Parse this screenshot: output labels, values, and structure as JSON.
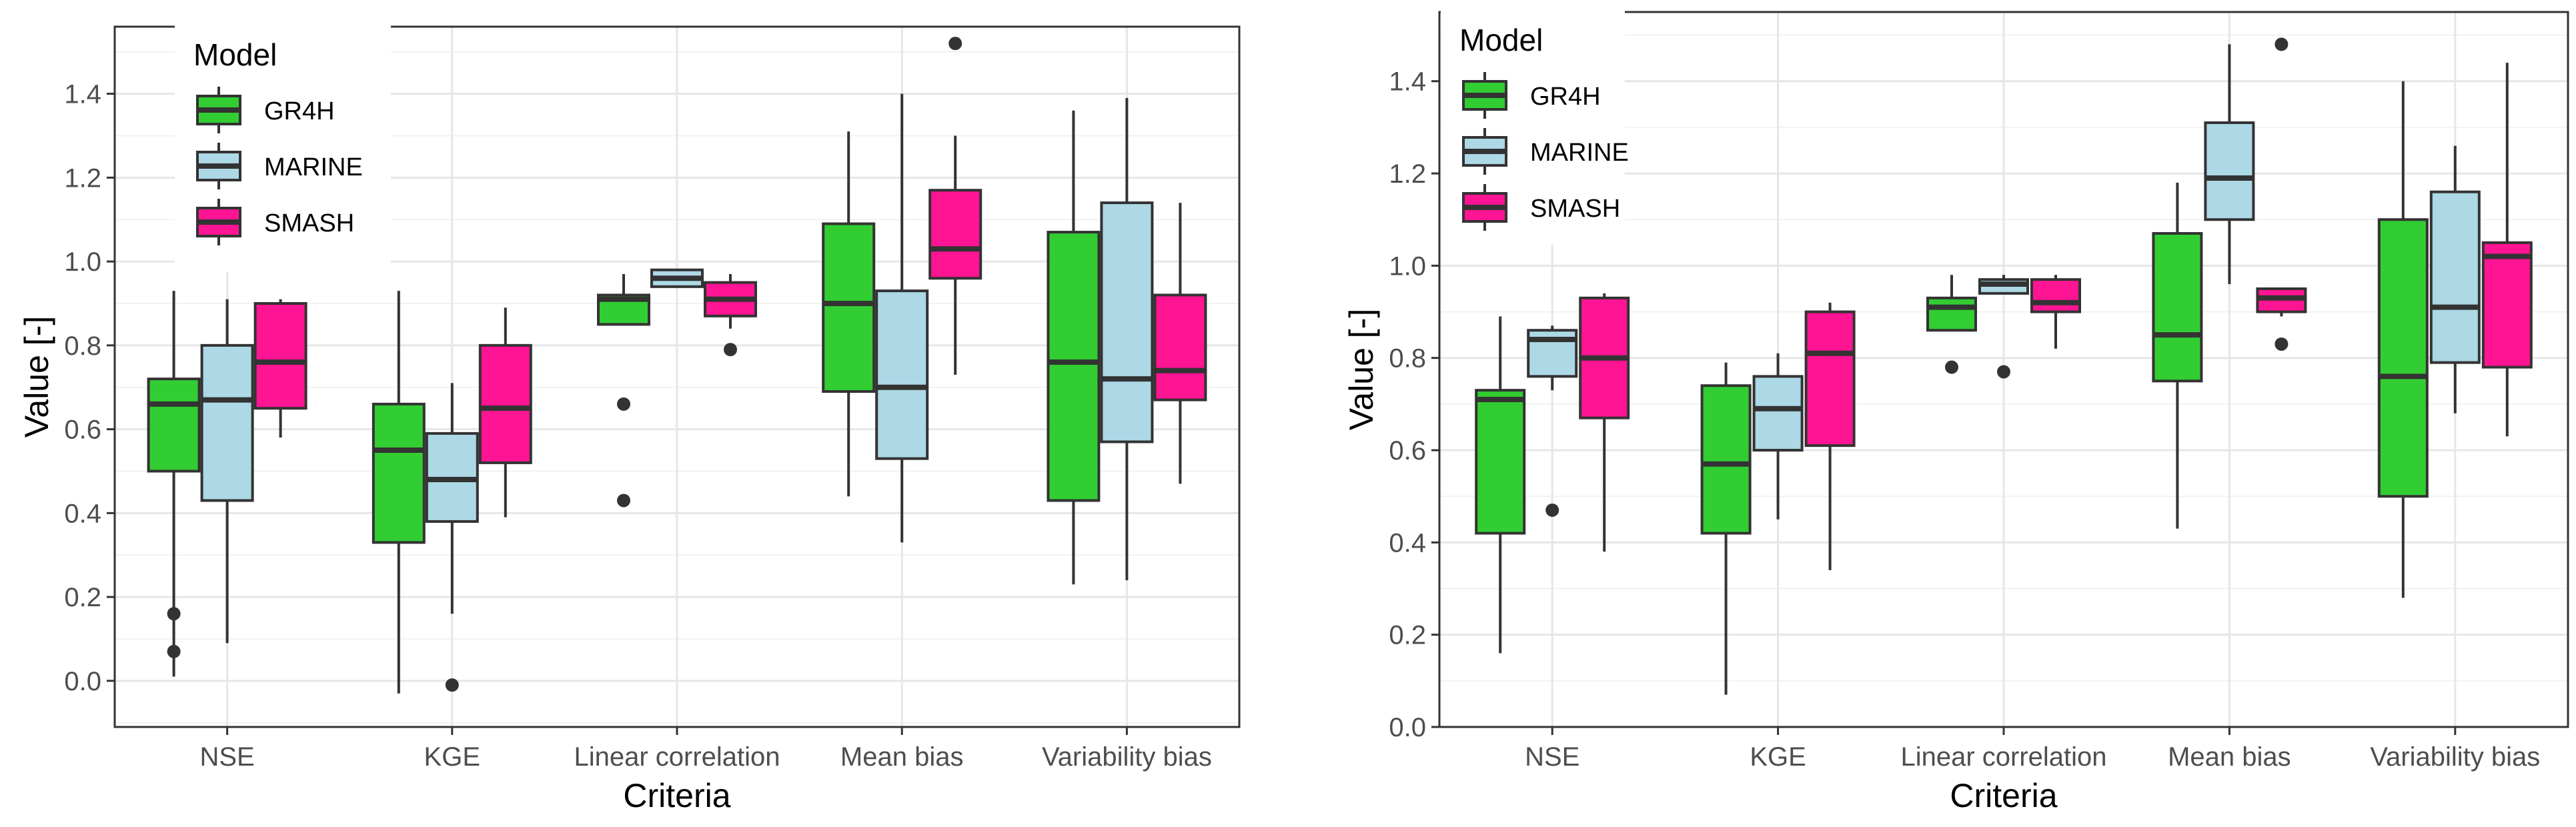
{
  "chart_data": [
    {
      "type": "boxplot",
      "title": "",
      "xlabel": "Criteria",
      "ylabel": "Value [-]",
      "ylim": [
        -0.11,
        1.56
      ],
      "yticks": [
        0.0,
        0.2,
        0.4,
        0.6,
        0.8,
        1.0,
        1.2,
        1.4
      ],
      "ytick_labels": [
        "0.0",
        "0.2",
        "0.4",
        "0.6",
        "0.8",
        "1.0",
        "1.2",
        "1.4"
      ],
      "categories": [
        "NSE",
        "KGE",
        "Linear correlation",
        "Mean bias",
        "Variability bias"
      ],
      "legend": {
        "title": "Model",
        "position": "top-left"
      },
      "series": [
        {
          "name": "GR4H",
          "color": "#32cd32",
          "boxes": [
            {
              "whislo": 0.01,
              "q1": 0.5,
              "med": 0.66,
              "q3": 0.72,
              "whishi": 0.93,
              "fliers": [
                0.16,
                0.07
              ]
            },
            {
              "whislo": -0.03,
              "q1": 0.33,
              "med": 0.55,
              "q3": 0.66,
              "whishi": 0.93,
              "fliers": []
            },
            {
              "whislo": 0.85,
              "q1": 0.85,
              "med": 0.91,
              "q3": 0.92,
              "whishi": 0.97,
              "fliers": [
                0.66,
                0.43
              ]
            },
            {
              "whislo": 0.44,
              "q1": 0.69,
              "med": 0.9,
              "q3": 1.09,
              "whishi": 1.31,
              "fliers": []
            },
            {
              "whislo": 0.23,
              "q1": 0.43,
              "med": 0.76,
              "q3": 1.07,
              "whishi": 1.36,
              "fliers": []
            }
          ]
        },
        {
          "name": "MARINE",
          "color": "#add8e6",
          "boxes": [
            {
              "whislo": 0.09,
              "q1": 0.43,
              "med": 0.67,
              "q3": 0.8,
              "whishi": 0.91,
              "fliers": []
            },
            {
              "whislo": 0.16,
              "q1": 0.38,
              "med": 0.48,
              "q3": 0.59,
              "whishi": 0.71,
              "fliers": [
                -0.01
              ]
            },
            {
              "whislo": 0.94,
              "q1": 0.94,
              "med": 0.96,
              "q3": 0.98,
              "whishi": 0.98,
              "fliers": []
            },
            {
              "whislo": 0.33,
              "q1": 0.53,
              "med": 0.7,
              "q3": 0.93,
              "whishi": 1.4,
              "fliers": []
            },
            {
              "whislo": 0.24,
              "q1": 0.57,
              "med": 0.72,
              "q3": 1.14,
              "whishi": 1.39,
              "fliers": []
            }
          ]
        },
        {
          "name": "SMASH",
          "color": "#ff1493",
          "boxes": [
            {
              "whislo": 0.58,
              "q1": 0.65,
              "med": 0.76,
              "q3": 0.9,
              "whishi": 0.91,
              "fliers": []
            },
            {
              "whislo": 0.39,
              "q1": 0.52,
              "med": 0.65,
              "q3": 0.8,
              "whishi": 0.89,
              "fliers": []
            },
            {
              "whislo": 0.84,
              "q1": 0.87,
              "med": 0.91,
              "q3": 0.95,
              "whishi": 0.97,
              "fliers": [
                0.79
              ]
            },
            {
              "whislo": 0.73,
              "q1": 0.96,
              "med": 1.03,
              "q3": 1.17,
              "whishi": 1.3,
              "fliers": [
                1.52
              ]
            },
            {
              "whislo": 0.47,
              "q1": 0.67,
              "med": 0.74,
              "q3": 0.92,
              "whishi": 1.14,
              "fliers": []
            }
          ]
        }
      ]
    },
    {
      "type": "boxplot",
      "title": "",
      "xlabel": "Criteria",
      "ylabel": "Value [-]",
      "ylim": [
        0.0,
        1.55
      ],
      "yticks": [
        0.0,
        0.2,
        0.4,
        0.6,
        0.8,
        1.0,
        1.2,
        1.4
      ],
      "ytick_labels": [
        "0.0",
        "0.2",
        "0.4",
        "0.6",
        "0.8",
        "1.0",
        "1.2",
        "1.4"
      ],
      "categories": [
        "NSE",
        "KGE",
        "Linear correlation",
        "Mean bias",
        "Variability bias"
      ],
      "legend": {
        "title": "Model",
        "position": "top-left"
      },
      "series": [
        {
          "name": "GR4H",
          "color": "#32cd32",
          "boxes": [
            {
              "whislo": 0.16,
              "q1": 0.42,
              "med": 0.71,
              "q3": 0.73,
              "whishi": 0.89,
              "fliers": []
            },
            {
              "whislo": 0.07,
              "q1": 0.42,
              "med": 0.57,
              "q3": 0.74,
              "whishi": 0.79,
              "fliers": []
            },
            {
              "whislo": 0.86,
              "q1": 0.86,
              "med": 0.91,
              "q3": 0.93,
              "whishi": 0.98,
              "fliers": [
                0.78
              ]
            },
            {
              "whislo": 0.43,
              "q1": 0.75,
              "med": 0.85,
              "q3": 1.07,
              "whishi": 1.18,
              "fliers": []
            },
            {
              "whislo": 0.28,
              "q1": 0.5,
              "med": 0.76,
              "q3": 1.1,
              "whishi": 1.4,
              "fliers": []
            }
          ]
        },
        {
          "name": "MARINE",
          "color": "#add8e6",
          "boxes": [
            {
              "whislo": 0.73,
              "q1": 0.76,
              "med": 0.84,
              "q3": 0.86,
              "whishi": 0.87,
              "fliers": [
                0.47
              ]
            },
            {
              "whislo": 0.45,
              "q1": 0.6,
              "med": 0.69,
              "q3": 0.76,
              "whishi": 0.81,
              "fliers": []
            },
            {
              "whislo": 0.94,
              "q1": 0.94,
              "med": 0.96,
              "q3": 0.97,
              "whishi": 0.98,
              "fliers": [
                0.77
              ]
            },
            {
              "whislo": 0.96,
              "q1": 1.1,
              "med": 1.19,
              "q3": 1.31,
              "whishi": 1.48,
              "fliers": []
            },
            {
              "whislo": 0.68,
              "q1": 0.79,
              "med": 0.91,
              "q3": 1.16,
              "whishi": 1.26,
              "fliers": []
            }
          ]
        },
        {
          "name": "SMASH",
          "color": "#ff1493",
          "boxes": [
            {
              "whislo": 0.38,
              "q1": 0.67,
              "med": 0.8,
              "q3": 0.93,
              "whishi": 0.94,
              "fliers": []
            },
            {
              "whislo": 0.34,
              "q1": 0.61,
              "med": 0.81,
              "q3": 0.9,
              "whishi": 0.92,
              "fliers": []
            },
            {
              "whislo": 0.82,
              "q1": 0.9,
              "med": 0.92,
              "q3": 0.97,
              "whishi": 0.98,
              "fliers": []
            },
            {
              "whislo": 0.89,
              "q1": 0.9,
              "med": 0.93,
              "q3": 0.95,
              "whishi": 0.95,
              "fliers": [
                1.48,
                0.83
              ]
            },
            {
              "whislo": 0.63,
              "q1": 0.78,
              "med": 1.02,
              "q3": 1.05,
              "whishi": 1.44,
              "fliers": []
            }
          ]
        }
      ]
    }
  ]
}
